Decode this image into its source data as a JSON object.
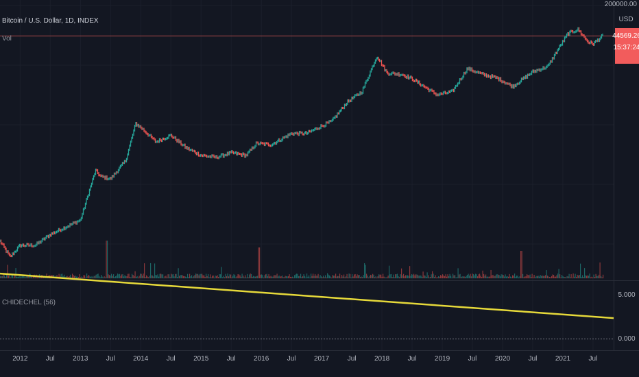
{
  "chart": {
    "symbol_title": "Bitcoin / U.S. Dollar, 1D, INDEX",
    "volume_label": "Vol",
    "currency": "USD",
    "top_price_label": "200000.00",
    "last_price": "44569.26",
    "countdown": "15:37:24",
    "indicator_label": "CHIDECHEL (56)",
    "indicator_ticks": [
      "5.000",
      "0.000"
    ],
    "colors": {
      "up": "#26a69a",
      "down": "#ef5350",
      "indicator": "#e6d93a",
      "price_tag": "#f25c5c",
      "grid": "#1e222d",
      "background": "#131722"
    }
  },
  "chart_data": {
    "type": "line",
    "title": "Bitcoin / U.S. Dollar, 1D, INDEX",
    "price_scale": "log",
    "x_tick_labels": [
      "2012",
      "Jul",
      "2013",
      "Jul",
      "2014",
      "Jul",
      "2015",
      "Jul",
      "2016",
      "Jul",
      "2017",
      "Jul",
      "2018",
      "Jul",
      "2019",
      "Jul",
      "2020",
      "Jul",
      "2021",
      "Jul"
    ],
    "price_series": {
      "name": "Bitcoin / U.S. Dollar",
      "x": [
        "2011-09",
        "2011-11",
        "2012-01",
        "2012-04",
        "2012-07",
        "2012-10",
        "2013-01",
        "2013-04",
        "2013-05",
        "2013-07",
        "2013-10",
        "2013-12",
        "2014-01",
        "2014-04",
        "2014-07",
        "2014-10",
        "2015-01",
        "2015-04",
        "2015-07",
        "2015-10",
        "2015-12",
        "2016-03",
        "2016-07",
        "2016-10",
        "2017-01",
        "2017-03",
        "2017-06",
        "2017-09",
        "2017-12",
        "2018-02",
        "2018-05",
        "2018-07",
        "2018-11",
        "2018-12",
        "2019-03",
        "2019-06",
        "2019-09",
        "2019-12",
        "2020-03",
        "2020-07",
        "2020-10",
        "2020-12",
        "2021-02",
        "2021-04",
        "2021-06",
        "2021-07",
        "2021-09"
      ],
      "y": [
        6,
        3,
        5,
        5,
        8,
        11,
        15,
        130,
        100,
        90,
        200,
        1000,
        850,
        450,
        600,
        350,
        250,
        230,
        280,
        250,
        420,
        400,
        650,
        650,
        900,
        1100,
        2500,
        4000,
        19000,
        9000,
        8500,
        7000,
        4000,
        3500,
        4000,
        11000,
        8500,
        7200,
        5000,
        9500,
        12000,
        25000,
        50000,
        60000,
        35000,
        32000,
        46000
      ]
    },
    "volume": {
      "label": "Vol"
    },
    "indicator": {
      "name": "CHIDECHEL (56)",
      "x": [
        "2011-09",
        "2021-09"
      ],
      "y": [
        7.3,
        2.3
      ],
      "ylim": [
        0,
        5
      ]
    }
  }
}
